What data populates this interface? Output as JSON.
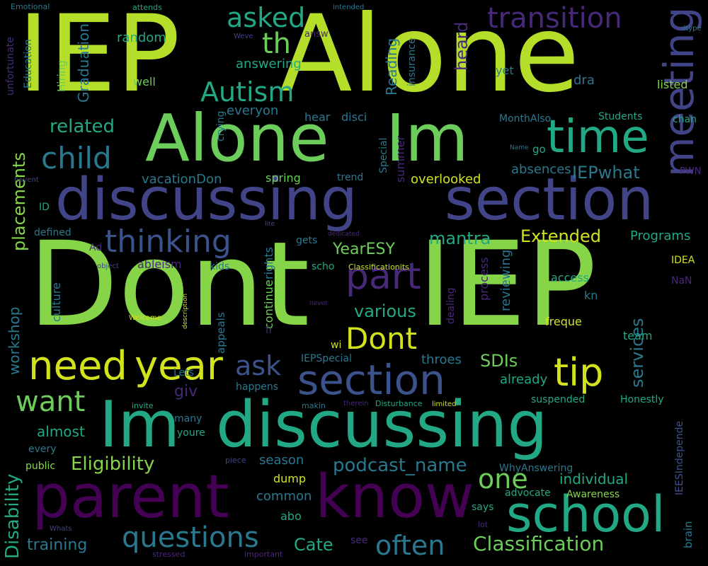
{
  "palette": {
    "background": "#000000",
    "lime": "#b5de2b",
    "yellow": "#d2e21b",
    "green": "#6ccd5a",
    "lightgreen": "#86d549",
    "teal": "#22a884",
    "tealblue": "#2a788e",
    "blue": "#3b528b",
    "indigo": "#414487",
    "purple": "#482878",
    "deep": "#440154"
  },
  "words": [
    "IEP",
    "Alone",
    "Alone",
    "Im",
    "discussing",
    "section",
    "Dont",
    "IEP",
    "Im",
    "discussing",
    "parent",
    "know",
    "school",
    "need",
    "year",
    "section",
    "tip",
    "meeting",
    "time",
    "child",
    "thinking",
    "part",
    "Dont",
    "Autism",
    "asked",
    "th",
    "transition",
    "placements",
    "related",
    "IEPwhat",
    "Extended",
    "mantra",
    "YearESY",
    "various",
    "ask",
    "want",
    "giv",
    "SDIs",
    "services",
    "one",
    "podcast_name",
    "Eligibility",
    "Disability",
    "questions",
    "often",
    "Classification",
    "training",
    "Cate",
    "Graduation",
    "Reading",
    "heard",
    "random",
    "answering",
    "Hiring",
    "Education",
    "unfortunate",
    "Emotional",
    "attends",
    "intended",
    "dtype",
    "listed",
    "yet",
    "dra",
    "well",
    "everyon",
    "hear",
    "disci",
    "crying",
    "Students",
    "chan",
    "MonthAlso",
    "Special",
    "summer",
    "absences",
    "overlooked",
    "vacationDon",
    "spring",
    "trend",
    "PWN",
    "ID",
    "defined",
    "Ad",
    "ableism",
    "kids",
    "rights",
    "gets",
    "scho",
    "Programs",
    "IDEA",
    "NaN",
    "access",
    "kn",
    "reviewing",
    "freque",
    "team",
    "culture",
    "workshop",
    "appeals",
    "continue",
    "fr",
    "wi",
    "IEPSpecial",
    "throes",
    "already",
    "suspended",
    "Lets",
    "happens",
    "invite",
    "makin",
    "therein",
    "Disturbance",
    "limited",
    "Honestly",
    "almost",
    "every",
    "public",
    "many",
    "youre",
    "season",
    "dump",
    "common",
    "abo",
    "WhyAnswering",
    "individual",
    "Awareness",
    "advocate",
    "says",
    "lot",
    "brain",
    "IEESIndepende",
    "see",
    "stressed",
    "important",
    "Whats",
    "Weve",
    "answ",
    "insurance",
    "Name",
    "go",
    "havent",
    "dedicated",
    "lite",
    "object",
    "Welcome",
    "description",
    "never",
    "dealing",
    "process",
    "Classificationits",
    "piece",
    "questions"
  ]
}
